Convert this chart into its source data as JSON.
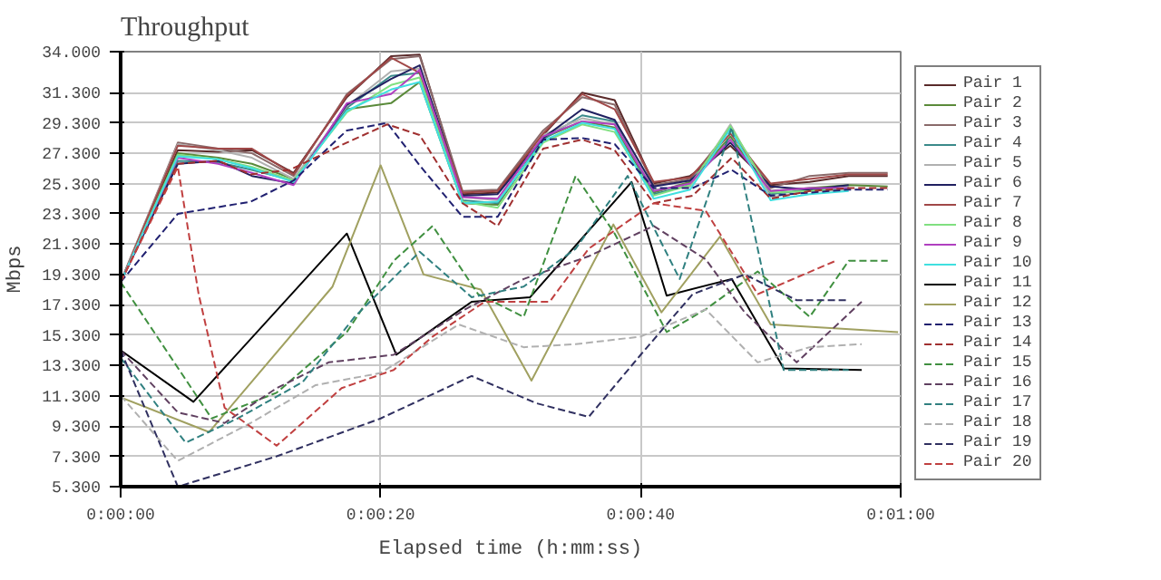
{
  "chart_data": {
    "type": "line",
    "title": "Throughput",
    "xlabel": "Elapsed time (h:mm:ss)",
    "ylabel": "Mbps",
    "xlim": [
      0,
      60
    ],
    "xticks": [
      {
        "value": 0,
        "label": "0:00:00"
      },
      {
        "value": 20,
        "label": "0:00:20"
      },
      {
        "value": 40,
        "label": "0:00:40"
      },
      {
        "value": 60,
        "label": "0:01:00"
      }
    ],
    "ylim": [
      5.3,
      34
    ],
    "yticks": [
      {
        "value": 5.3,
        "label": "5.300"
      },
      {
        "value": 7.3,
        "label": "7.300"
      },
      {
        "value": 9.3,
        "label": "9.300"
      },
      {
        "value": 11.3,
        "label": "11.300"
      },
      {
        "value": 13.3,
        "label": "13.300"
      },
      {
        "value": 15.3,
        "label": "15.300"
      },
      {
        "value": 17.3,
        "label": "17.300"
      },
      {
        "value": 19.3,
        "label": "19.300"
      },
      {
        "value": 21.3,
        "label": "21.300"
      },
      {
        "value": 23.3,
        "label": "23.300"
      },
      {
        "value": 25.3,
        "label": "25.300"
      },
      {
        "value": 27.3,
        "label": "27.300"
      },
      {
        "value": 29.3,
        "label": "29.300"
      },
      {
        "value": 31.3,
        "label": "31.300"
      },
      {
        "value": 34,
        "label": "34.000"
      }
    ],
    "grid": true,
    "legend": "right",
    "marker": "none",
    "series": [
      {
        "name": "Pair 1",
        "color": "#5a2a2a",
        "line_style": "solid",
        "x": [
          0,
          4.4,
          7.5,
          10.1,
          13.3,
          17.4,
          20.8,
          23,
          26.3,
          29,
          32.5,
          35.5,
          38,
          41,
          43.8,
          46.9,
          50,
          53,
          56,
          59
        ],
        "values": [
          18.8,
          27.5,
          27.4,
          27.5,
          26.0,
          31.0,
          33.7,
          33.8,
          24.6,
          24.7,
          28.5,
          31.3,
          30.8,
          25.3,
          25.8,
          27.8,
          25.2,
          25.4,
          25.8,
          25.8
        ]
      },
      {
        "name": "Pair 2",
        "color": "#5a8a3a",
        "line_style": "solid",
        "x": [
          0,
          4.4,
          7.5,
          10.1,
          13.3,
          17.4,
          20.8,
          23,
          26.3,
          29,
          32.5,
          35.5,
          38,
          41,
          43.8,
          46.9,
          50,
          53,
          56,
          59
        ],
        "values": [
          18.8,
          27.3,
          27.0,
          26.6,
          25.6,
          30.2,
          30.6,
          32.0,
          24.0,
          23.9,
          28.3,
          29.4,
          29.0,
          24.7,
          25.4,
          28.4,
          24.8,
          25.0,
          25.2,
          25.1
        ]
      },
      {
        "name": "Pair 3",
        "color": "#8a6a6a",
        "line_style": "solid",
        "x": [
          0,
          4.4,
          7.5,
          10.1,
          13.3,
          17.4,
          20.8,
          23,
          26.3,
          29,
          32.5,
          35.5,
          38,
          41,
          43.8,
          46.9,
          50,
          53,
          56,
          59
        ],
        "values": [
          18.8,
          28.0,
          27.6,
          27.3,
          25.8,
          31.2,
          33.5,
          33.7,
          24.8,
          24.9,
          28.8,
          31.0,
          30.5,
          25.2,
          25.6,
          28.9,
          25.0,
          25.8,
          26.0,
          26.0
        ]
      },
      {
        "name": "Pair 4",
        "color": "#3a8a8a",
        "line_style": "solid",
        "x": [
          0,
          4.4,
          7.5,
          10.1,
          13.3,
          17.4,
          20.8,
          23,
          26.3,
          29,
          32.5,
          35.5,
          38,
          41,
          43.8,
          46.9,
          50,
          53,
          56
        ],
        "values": [
          18.8,
          26.8,
          26.7,
          26.2,
          25.5,
          30.3,
          32.4,
          32.6,
          24.2,
          24.0,
          28.2,
          29.8,
          29.4,
          24.6,
          25.2,
          29.0,
          24.6,
          24.9,
          25.0
        ]
      },
      {
        "name": "Pair 5",
        "color": "#b0b0b0",
        "line_style": "solid",
        "x": [
          0,
          4.4,
          7.5,
          10.1,
          13.3,
          17.4,
          20.8,
          23,
          26.3,
          29,
          32.5,
          35.5,
          38,
          41,
          43.8,
          46.9,
          50,
          53,
          56
        ],
        "values": [
          18.8,
          27.9,
          27.5,
          27.0,
          25.6,
          30.4,
          32.7,
          32.9,
          24.4,
          24.2,
          28.5,
          29.6,
          29.2,
          24.9,
          25.1,
          29.2,
          24.4,
          24.8,
          24.9
        ]
      },
      {
        "name": "Pair 6",
        "color": "#202060",
        "line_style": "solid",
        "x": [
          0,
          4.4,
          7.5,
          10.1,
          13.3,
          17.4,
          20.8,
          23,
          26.3,
          29,
          32.5,
          35.5,
          38,
          41,
          43.8,
          46.9,
          50,
          53,
          56
        ],
        "values": [
          18.8,
          26.6,
          26.8,
          25.8,
          25.3,
          30.5,
          32.2,
          33.1,
          24.5,
          24.6,
          28.3,
          30.2,
          29.5,
          25.1,
          25.5,
          28.0,
          25.1,
          24.9,
          25.2
        ]
      },
      {
        "name": "Pair 7",
        "color": "#a04848",
        "line_style": "solid",
        "x": [
          0,
          4.4,
          7.5,
          10.1,
          13.3,
          17.4,
          20.8,
          23,
          26.3,
          29,
          32.5,
          35.5,
          38,
          41,
          43.8,
          46.9,
          50,
          53,
          56,
          59
        ],
        "values": [
          18.8,
          27.8,
          27.6,
          27.6,
          25.9,
          31.1,
          33.6,
          32.6,
          24.7,
          24.8,
          28.6,
          31.2,
          30.2,
          25.4,
          25.7,
          28.6,
          25.3,
          25.6,
          25.9,
          25.9
        ]
      },
      {
        "name": "Pair 8",
        "color": "#80e080",
        "line_style": "solid",
        "x": [
          0,
          4.4,
          7.5,
          10.1,
          13.3,
          17.4,
          20.8,
          23,
          26.3,
          29,
          32.5,
          35.5,
          38,
          41,
          43.8,
          46.9,
          50,
          53,
          56
        ],
        "values": [
          18.8,
          27.2,
          26.9,
          26.4,
          25.5,
          30.0,
          31.8,
          32.3,
          24.1,
          23.7,
          28.0,
          29.2,
          28.7,
          24.5,
          25.2,
          29.1,
          24.7,
          24.8,
          25.0
        ]
      },
      {
        "name": "Pair 9",
        "color": "#b040c0",
        "line_style": "solid",
        "x": [
          0,
          4.4,
          7.5,
          10.1,
          13.3,
          17.4,
          20.8,
          23,
          26.3,
          29,
          32.5,
          35.5,
          38,
          41,
          43.8,
          46.9,
          50,
          53,
          56
        ],
        "values": [
          18.8,
          27.0,
          26.6,
          26.0,
          25.2,
          30.6,
          31.2,
          32.8,
          24.4,
          24.3,
          28.4,
          29.4,
          29.2,
          24.8,
          25.3,
          28.2,
          24.8,
          25.0,
          25.0
        ]
      },
      {
        "name": "Pair 10",
        "color": "#40e0e0",
        "line_style": "solid",
        "x": [
          0,
          4.4,
          7.5,
          10.1,
          13.3,
          17.4,
          20.8,
          23,
          26.3,
          29,
          32.5,
          35.5,
          38,
          41,
          43.8,
          46.9,
          50,
          53,
          56
        ],
        "values": [
          18.8,
          27.1,
          26.9,
          26.3,
          25.4,
          30.1,
          31.5,
          32.0,
          24.0,
          24.1,
          28.1,
          29.3,
          28.9,
          24.3,
          24.9,
          28.9,
          24.2,
          24.6,
          24.8
        ]
      },
      {
        "name": "Pair 11",
        "color": "#000000",
        "line_style": "solid",
        "x": [
          0,
          5.6,
          17.4,
          21.2,
          27,
          31.5,
          39.3,
          42,
          47,
          51,
          57
        ],
        "values": [
          14.3,
          10.9,
          22.0,
          14.0,
          17.5,
          17.8,
          25.4,
          17.9,
          19.0,
          13.1,
          13.0
        ]
      },
      {
        "name": "Pair 12",
        "color": "#a0a060",
        "line_style": "solid",
        "x": [
          0,
          6.8,
          16.3,
          20,
          23.3,
          27.7,
          31.6,
          37.9,
          41.6,
          46.1,
          50,
          59.8
        ],
        "values": [
          11.2,
          8.9,
          18.5,
          26.5,
          19.3,
          18.3,
          12.3,
          22.6,
          16.8,
          21.8,
          16.0,
          15.5
        ]
      },
      {
        "name": "Pair 13",
        "color": "#202070",
        "line_style": "dashed",
        "x": [
          0,
          4.4,
          10,
          13.3,
          17.4,
          20.5,
          23,
          26.3,
          29,
          32.5,
          35.5,
          38,
          41,
          44,
          47,
          50,
          56,
          59
        ],
        "values": [
          18.8,
          23.3,
          24.1,
          25.5,
          28.8,
          29.3,
          26.5,
          23.1,
          23.1,
          28.2,
          28.3,
          27.9,
          25.0,
          25.0,
          26.2,
          24.5,
          24.9,
          24.9
        ]
      },
      {
        "name": "Pair 14",
        "color": "#a03030",
        "line_style": "dashed",
        "x": [
          0,
          4.4,
          7.5,
          10,
          13,
          17.4,
          20.5,
          23,
          26.3,
          29,
          32.5,
          35.5,
          38,
          41,
          44,
          47,
          50,
          53,
          56,
          59
        ],
        "values": [
          18.8,
          26.6,
          26.8,
          25.9,
          26.2,
          28.0,
          29.2,
          28.5,
          24.0,
          22.5,
          27.6,
          28.2,
          27.5,
          24.0,
          24.5,
          27.0,
          24.3,
          24.8,
          25.0,
          25.0
        ]
      },
      {
        "name": "Pair 15",
        "color": "#409040",
        "line_style": "dashed",
        "x": [
          0,
          7,
          12,
          17.4,
          21,
          24,
          27.5,
          31,
          35,
          38,
          42,
          45,
          49,
          53,
          56,
          59
        ],
        "values": [
          18.8,
          9.8,
          11.5,
          15.5,
          20.2,
          22.5,
          18.0,
          16.5,
          25.8,
          22.0,
          15.5,
          17.0,
          19.5,
          16.5,
          20.2,
          20.2
        ]
      },
      {
        "name": "Pair 16",
        "color": "#604060",
        "line_style": "dashed",
        "x": [
          0,
          4.4,
          8,
          12,
          16,
          21,
          26.5,
          31,
          36,
          41,
          45,
          48,
          52,
          57
        ],
        "values": [
          14.3,
          10.2,
          9.5,
          11.8,
          13.5,
          14.0,
          17.0,
          19.0,
          20.5,
          22.5,
          20.3,
          16.8,
          13.5,
          17.5
        ]
      },
      {
        "name": "Pair 17",
        "color": "#308080",
        "line_style": "dashed",
        "x": [
          0,
          5,
          9,
          14,
          18,
          23,
          27,
          31,
          35,
          39,
          43,
          47,
          51,
          56
        ],
        "values": [
          13.8,
          8.2,
          9.8,
          12.2,
          16.5,
          20.8,
          17.8,
          18.5,
          21.0,
          25.8,
          19.0,
          29.0,
          13.0,
          13.0
        ]
      },
      {
        "name": "Pair 18",
        "color": "#b0b0b0",
        "line_style": "dashed",
        "x": [
          0,
          4.4,
          10,
          15,
          20,
          26,
          31,
          35,
          40,
          45,
          49,
          53,
          57
        ],
        "values": [
          11.3,
          7.0,
          9.5,
          12.0,
          12.8,
          16.0,
          14.5,
          14.7,
          15.2,
          17.0,
          13.5,
          14.5,
          14.7
        ]
      },
      {
        "name": "Pair 19",
        "color": "#303060",
        "line_style": "dashed",
        "x": [
          0,
          4.4,
          12,
          20,
          27,
          32,
          36,
          40,
          44,
          48,
          52,
          56
        ],
        "values": [
          14.3,
          5.3,
          7.3,
          9.8,
          12.6,
          10.8,
          9.9,
          14.0,
          18.0,
          19.3,
          17.6,
          17.6
        ]
      },
      {
        "name": "Pair 20",
        "color": "#c04040",
        "line_style": "dashed",
        "x": [
          0,
          4.4,
          6,
          8,
          12,
          17,
          21,
          24,
          28,
          33,
          36,
          41,
          45,
          49,
          55
        ],
        "values": [
          18.8,
          26.4,
          18.0,
          10.5,
          8.0,
          11.8,
          13.0,
          15.2,
          17.5,
          17.5,
          21.0,
          24.0,
          23.5,
          18.0,
          20.2
        ]
      }
    ]
  }
}
